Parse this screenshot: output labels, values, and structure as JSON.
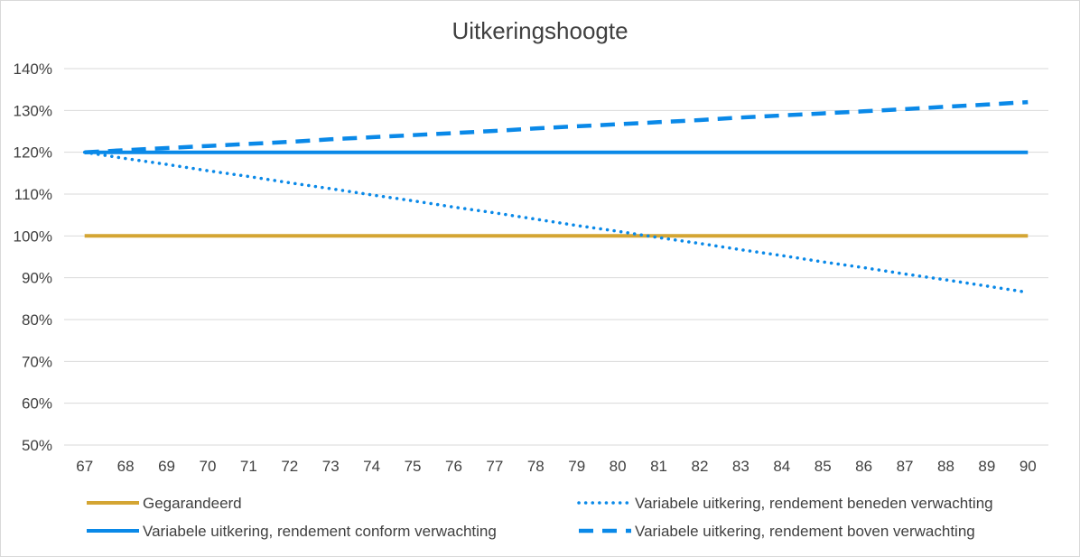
{
  "chart_data": {
    "type": "line",
    "title": "Uitkeringshoogte",
    "xlabel": "",
    "ylabel": "",
    "x": [
      67,
      68,
      69,
      70,
      71,
      72,
      73,
      74,
      75,
      76,
      77,
      78,
      79,
      80,
      81,
      82,
      83,
      84,
      85,
      86,
      87,
      88,
      89,
      90
    ],
    "ylim": [
      0.5,
      1.4
    ],
    "y_ticks": [
      "50%",
      "60%",
      "70%",
      "80%",
      "90%",
      "100%",
      "110%",
      "120%",
      "130%",
      "140%"
    ],
    "grid": true,
    "legend_position": "bottom",
    "series": [
      {
        "name": "Gegarandeerd",
        "color": "#d4a533",
        "style": "solid",
        "values": [
          1.0,
          1.0,
          1.0,
          1.0,
          1.0,
          1.0,
          1.0,
          1.0,
          1.0,
          1.0,
          1.0,
          1.0,
          1.0,
          1.0,
          1.0,
          1.0,
          1.0,
          1.0,
          1.0,
          1.0,
          1.0,
          1.0,
          1.0,
          1.0
        ]
      },
      {
        "name": "Variabele uitkering, rendement beneden verwachting",
        "color": "#0a89e8",
        "style": "dotted",
        "values": [
          1.2,
          1.185,
          1.171,
          1.156,
          1.142,
          1.127,
          1.113,
          1.098,
          1.084,
          1.069,
          1.055,
          1.04,
          1.025,
          1.011,
          0.996,
          0.982,
          0.967,
          0.953,
          0.938,
          0.924,
          0.909,
          0.895,
          0.88,
          0.865
        ]
      },
      {
        "name": "Variabele uitkering, rendement conform verwachting",
        "color": "#0a89e8",
        "style": "solid",
        "values": [
          1.2,
          1.2,
          1.2,
          1.2,
          1.2,
          1.2,
          1.2,
          1.2,
          1.2,
          1.2,
          1.2,
          1.2,
          1.2,
          1.2,
          1.2,
          1.2,
          1.2,
          1.2,
          1.2,
          1.2,
          1.2,
          1.2,
          1.2,
          1.2
        ]
      },
      {
        "name": "Variabele uitkering, rendement boven verwachting",
        "color": "#0a89e8",
        "style": "dashed",
        "values": [
          1.2,
          1.205,
          1.21,
          1.215,
          1.22,
          1.225,
          1.231,
          1.236,
          1.241,
          1.246,
          1.251,
          1.257,
          1.262,
          1.267,
          1.272,
          1.277,
          1.283,
          1.288,
          1.293,
          1.298,
          1.303,
          1.309,
          1.314,
          1.32
        ]
      }
    ]
  }
}
